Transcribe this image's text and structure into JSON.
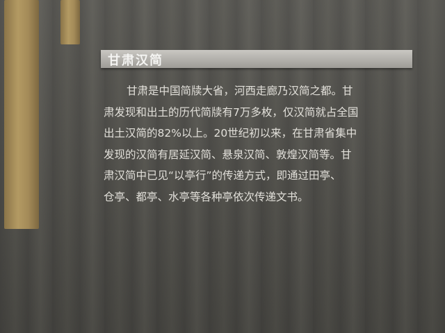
{
  "panel": {
    "title": "甘肃汉简",
    "lines": [
      "甘肃是中国简牍大省，河西走廊乃汉简之都。甘",
      "肃发现和出土的历代简牍有7万多枚，仅汉简就占全国",
      "出土汉简的82%以上。20世纪初以来，在甘肃省集中",
      "发现的汉简有居延汉简、悬泉汉简、敦煌汉简等。甘",
      "肃汉简中已见“以亭行”的传递方式，即通过田亭、",
      "仓亭、都亭、水亭等各种亭依次传递文书。"
    ]
  }
}
